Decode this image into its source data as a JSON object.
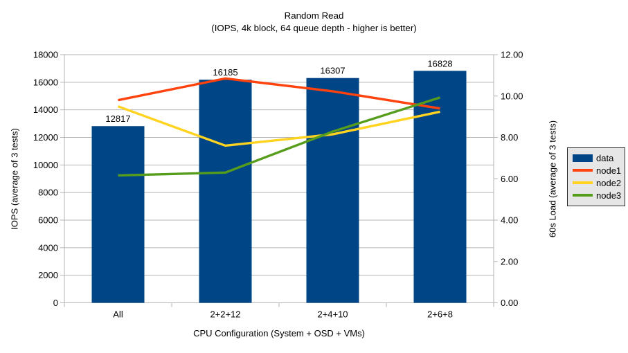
{
  "title": {
    "line1": "Random Read",
    "line2": "(IOPS, 4k block, 64 queue depth - higher is better)"
  },
  "chart_data": {
    "type": "bar",
    "subtype": "bar-and-line-combo",
    "categories": [
      "All",
      "2+2+12",
      "2+4+10",
      "2+6+8"
    ],
    "series": [
      {
        "name": "data",
        "type": "bar",
        "axis": "left",
        "color": "#004586",
        "values": [
          12817,
          16185,
          16307,
          16828
        ]
      },
      {
        "name": "node1",
        "type": "line",
        "axis": "right",
        "color": "#ff420e",
        "values": [
          9.8,
          10.85,
          10.23,
          9.4
        ]
      },
      {
        "name": "node2",
        "type": "line",
        "axis": "right",
        "color": "#ffd320",
        "values": [
          9.5,
          7.6,
          8.15,
          9.24
        ]
      },
      {
        "name": "node3",
        "type": "line",
        "axis": "right",
        "color": "#579d1c",
        "values": [
          6.16,
          6.3,
          8.28,
          9.93
        ]
      }
    ],
    "bar_labels": [
      "12817",
      "16185",
      "16307",
      "16828"
    ],
    "left_axis": {
      "label": "IOPS (average of 3 tests)",
      "min": 0,
      "max": 18000,
      "step": 2000,
      "ticks": [
        "18000",
        "16000",
        "14000",
        "12000",
        "10000",
        "8000",
        "6000",
        "4000",
        "2000",
        "0"
      ]
    },
    "right_axis": {
      "label": "60s Load (average of 3 tests)",
      "min": 0,
      "max": 12,
      "step": 2,
      "ticks": [
        "12.00",
        "10.00",
        "8.00",
        "6.00",
        "4.00",
        "2.00",
        "0.00"
      ]
    },
    "x_axis": {
      "label": "CPU Configuration (System + OSD + VMs)"
    },
    "legend": {
      "position": "right",
      "entries": [
        "data",
        "node1",
        "node2",
        "node3"
      ]
    },
    "grid": "horizontal-major-only",
    "colors": {
      "background": "#ffffff",
      "grid": "#b3b3b3",
      "axis": "#b3b3b3",
      "text": "#000000",
      "legend_bg": "#e6e6e6",
      "legend_border": "#2b2b2b"
    }
  }
}
